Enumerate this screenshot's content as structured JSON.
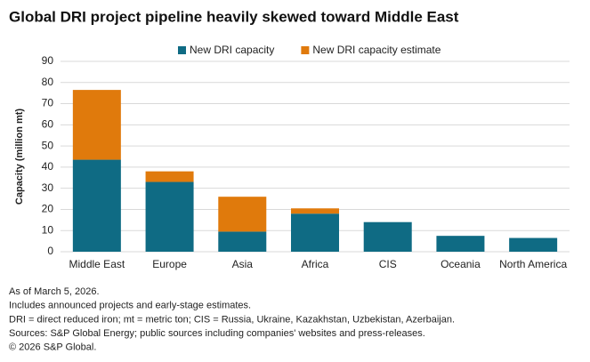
{
  "chart_data": {
    "type": "stacked_bar",
    "title": "Global DRI project pipeline heavily skewed toward Middle East",
    "y_label": "Capacity (million mt)",
    "categories": [
      "Middle East",
      "Europe",
      "Asia",
      "Africa",
      "CIS",
      "Oceania",
      "North America"
    ],
    "series": [
      {
        "name": "New DRI capacity",
        "color": "#0f6b84",
        "values": [
          43.5,
          33,
          9.5,
          18,
          14,
          7.5,
          6.5
        ]
      },
      {
        "name": "New DRI capacity estimate",
        "color": "#e07a0c",
        "values": [
          33,
          5,
          16.5,
          2.5,
          0,
          0,
          0
        ]
      }
    ],
    "ylim": [
      0,
      90
    ],
    "yticks": [
      0,
      10,
      20,
      30,
      40,
      50,
      60,
      70,
      80,
      90
    ],
    "grid": true,
    "notes": [
      "As of March 5, 2026.",
      "Includes announced projects and early-stage estimates.",
      "DRI = direct reduced iron; mt = metric ton; CIS = Russia, Ukraine, Kazakhstan, Uzbekistan, Azerbaijan.",
      "Sources: S&P Global Energy; public sources including companies' websites and press-releases.",
      "© 2026 S&P Global."
    ]
  }
}
